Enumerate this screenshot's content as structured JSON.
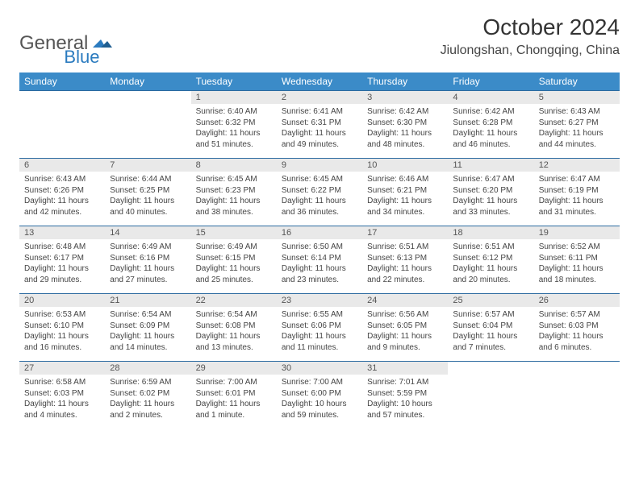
{
  "brand": {
    "part1": "General",
    "part2": "Blue"
  },
  "title": "October 2024",
  "location": "Jiulongshan, Chongqing, China",
  "colors": {
    "header_bg": "#3b8bc8",
    "header_text": "#ffffff",
    "daynum_bg": "#e9e9e9",
    "rule": "#2b6aa0",
    "body_text": "#444444",
    "logo_gray": "#555555",
    "logo_blue": "#2b7bbf"
  },
  "weekdays": [
    "Sunday",
    "Monday",
    "Tuesday",
    "Wednesday",
    "Thursday",
    "Friday",
    "Saturday"
  ],
  "weeks": [
    [
      null,
      null,
      {
        "n": "1",
        "sr": "Sunrise: 6:40 AM",
        "ss": "Sunset: 6:32 PM",
        "d1": "Daylight: 11 hours",
        "d2": "and 51 minutes."
      },
      {
        "n": "2",
        "sr": "Sunrise: 6:41 AM",
        "ss": "Sunset: 6:31 PM",
        "d1": "Daylight: 11 hours",
        "d2": "and 49 minutes."
      },
      {
        "n": "3",
        "sr": "Sunrise: 6:42 AM",
        "ss": "Sunset: 6:30 PM",
        "d1": "Daylight: 11 hours",
        "d2": "and 48 minutes."
      },
      {
        "n": "4",
        "sr": "Sunrise: 6:42 AM",
        "ss": "Sunset: 6:28 PM",
        "d1": "Daylight: 11 hours",
        "d2": "and 46 minutes."
      },
      {
        "n": "5",
        "sr": "Sunrise: 6:43 AM",
        "ss": "Sunset: 6:27 PM",
        "d1": "Daylight: 11 hours",
        "d2": "and 44 minutes."
      }
    ],
    [
      {
        "n": "6",
        "sr": "Sunrise: 6:43 AM",
        "ss": "Sunset: 6:26 PM",
        "d1": "Daylight: 11 hours",
        "d2": "and 42 minutes."
      },
      {
        "n": "7",
        "sr": "Sunrise: 6:44 AM",
        "ss": "Sunset: 6:25 PM",
        "d1": "Daylight: 11 hours",
        "d2": "and 40 minutes."
      },
      {
        "n": "8",
        "sr": "Sunrise: 6:45 AM",
        "ss": "Sunset: 6:23 PM",
        "d1": "Daylight: 11 hours",
        "d2": "and 38 minutes."
      },
      {
        "n": "9",
        "sr": "Sunrise: 6:45 AM",
        "ss": "Sunset: 6:22 PM",
        "d1": "Daylight: 11 hours",
        "d2": "and 36 minutes."
      },
      {
        "n": "10",
        "sr": "Sunrise: 6:46 AM",
        "ss": "Sunset: 6:21 PM",
        "d1": "Daylight: 11 hours",
        "d2": "and 34 minutes."
      },
      {
        "n": "11",
        "sr": "Sunrise: 6:47 AM",
        "ss": "Sunset: 6:20 PM",
        "d1": "Daylight: 11 hours",
        "d2": "and 33 minutes."
      },
      {
        "n": "12",
        "sr": "Sunrise: 6:47 AM",
        "ss": "Sunset: 6:19 PM",
        "d1": "Daylight: 11 hours",
        "d2": "and 31 minutes."
      }
    ],
    [
      {
        "n": "13",
        "sr": "Sunrise: 6:48 AM",
        "ss": "Sunset: 6:17 PM",
        "d1": "Daylight: 11 hours",
        "d2": "and 29 minutes."
      },
      {
        "n": "14",
        "sr": "Sunrise: 6:49 AM",
        "ss": "Sunset: 6:16 PM",
        "d1": "Daylight: 11 hours",
        "d2": "and 27 minutes."
      },
      {
        "n": "15",
        "sr": "Sunrise: 6:49 AM",
        "ss": "Sunset: 6:15 PM",
        "d1": "Daylight: 11 hours",
        "d2": "and 25 minutes."
      },
      {
        "n": "16",
        "sr": "Sunrise: 6:50 AM",
        "ss": "Sunset: 6:14 PM",
        "d1": "Daylight: 11 hours",
        "d2": "and 23 minutes."
      },
      {
        "n": "17",
        "sr": "Sunrise: 6:51 AM",
        "ss": "Sunset: 6:13 PM",
        "d1": "Daylight: 11 hours",
        "d2": "and 22 minutes."
      },
      {
        "n": "18",
        "sr": "Sunrise: 6:51 AM",
        "ss": "Sunset: 6:12 PM",
        "d1": "Daylight: 11 hours",
        "d2": "and 20 minutes."
      },
      {
        "n": "19",
        "sr": "Sunrise: 6:52 AM",
        "ss": "Sunset: 6:11 PM",
        "d1": "Daylight: 11 hours",
        "d2": "and 18 minutes."
      }
    ],
    [
      {
        "n": "20",
        "sr": "Sunrise: 6:53 AM",
        "ss": "Sunset: 6:10 PM",
        "d1": "Daylight: 11 hours",
        "d2": "and 16 minutes."
      },
      {
        "n": "21",
        "sr": "Sunrise: 6:54 AM",
        "ss": "Sunset: 6:09 PM",
        "d1": "Daylight: 11 hours",
        "d2": "and 14 minutes."
      },
      {
        "n": "22",
        "sr": "Sunrise: 6:54 AM",
        "ss": "Sunset: 6:08 PM",
        "d1": "Daylight: 11 hours",
        "d2": "and 13 minutes."
      },
      {
        "n": "23",
        "sr": "Sunrise: 6:55 AM",
        "ss": "Sunset: 6:06 PM",
        "d1": "Daylight: 11 hours",
        "d2": "and 11 minutes."
      },
      {
        "n": "24",
        "sr": "Sunrise: 6:56 AM",
        "ss": "Sunset: 6:05 PM",
        "d1": "Daylight: 11 hours",
        "d2": "and 9 minutes."
      },
      {
        "n": "25",
        "sr": "Sunrise: 6:57 AM",
        "ss": "Sunset: 6:04 PM",
        "d1": "Daylight: 11 hours",
        "d2": "and 7 minutes."
      },
      {
        "n": "26",
        "sr": "Sunrise: 6:57 AM",
        "ss": "Sunset: 6:03 PM",
        "d1": "Daylight: 11 hours",
        "d2": "and 6 minutes."
      }
    ],
    [
      {
        "n": "27",
        "sr": "Sunrise: 6:58 AM",
        "ss": "Sunset: 6:03 PM",
        "d1": "Daylight: 11 hours",
        "d2": "and 4 minutes."
      },
      {
        "n": "28",
        "sr": "Sunrise: 6:59 AM",
        "ss": "Sunset: 6:02 PM",
        "d1": "Daylight: 11 hours",
        "d2": "and 2 minutes."
      },
      {
        "n": "29",
        "sr": "Sunrise: 7:00 AM",
        "ss": "Sunset: 6:01 PM",
        "d1": "Daylight: 11 hours",
        "d2": "and 1 minute."
      },
      {
        "n": "30",
        "sr": "Sunrise: 7:00 AM",
        "ss": "Sunset: 6:00 PM",
        "d1": "Daylight: 10 hours",
        "d2": "and 59 minutes."
      },
      {
        "n": "31",
        "sr": "Sunrise: 7:01 AM",
        "ss": "Sunset: 5:59 PM",
        "d1": "Daylight: 10 hours",
        "d2": "and 57 minutes."
      },
      null,
      null
    ]
  ]
}
